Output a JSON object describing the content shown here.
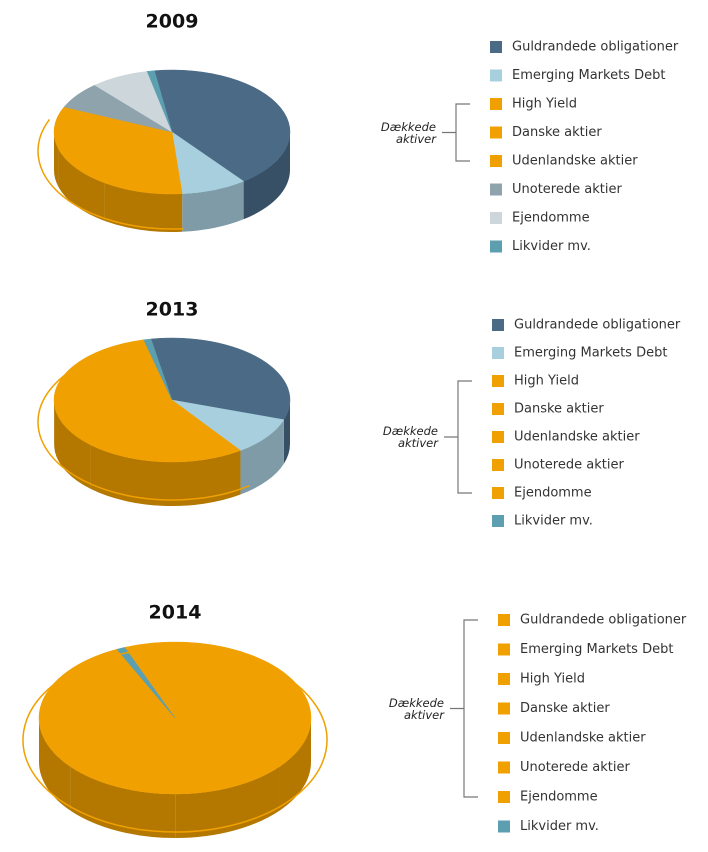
{
  "chart_data": [
    {
      "type": "pie",
      "title": "2009",
      "categories": [
        "Guldrandede obligationer",
        "Emerging Markets Debt",
        "High Yield",
        "Danske aktier",
        "Udenlandske aktier",
        "Unoterede aktier",
        "Ejendomme",
        "Likvider mv."
      ],
      "values": [
        42,
        9,
        11,
        11,
        11,
        7,
        8,
        1
      ],
      "colors": [
        "#4a6a86",
        "#a8cfde",
        "#f0a000",
        "#f0a000",
        "#f0a000",
        "#8fa3ad",
        "#cdd6db",
        "#5c9fb0"
      ],
      "annotation": "Dækkede aktiver",
      "bracket_color": "#f0a000"
    },
    {
      "type": "pie",
      "title": "2013",
      "categories": [
        "Guldrandede obligationer",
        "Emerging Markets Debt",
        "High Yield",
        "Danske aktier",
        "Udenlandske aktier",
        "Unoterede aktier",
        "Ejendomme",
        "Likvider mv."
      ],
      "values": [
        33,
        10,
        11,
        11,
        11,
        11,
        12,
        1
      ],
      "colors": [
        "#4a6a86",
        "#a8cfde",
        "#f0a000",
        "#f0a000",
        "#f0a000",
        "#f0a000",
        "#f0a000",
        "#5c9fb0"
      ],
      "annotation": "Dækkede aktiver",
      "bracket_color": "#f0a000"
    },
    {
      "type": "pie",
      "title": "2014",
      "categories": [
        "Guldrandede obligationer",
        "Emerging Markets Debt",
        "High Yield",
        "Danske aktier",
        "Udenlandske aktier",
        "Unoterede aktier",
        "Ejendomme",
        "Likvider mv."
      ],
      "values": [
        14,
        14,
        14,
        14,
        14,
        14,
        15,
        1
      ],
      "colors": [
        "#f0a000",
        "#f0a000",
        "#f0a000",
        "#f0a000",
        "#f0a000",
        "#f0a000",
        "#f0a000",
        "#5c9fb0"
      ],
      "annotation": "Dækkede aktiver",
      "bracket_color": "#f0a000"
    }
  ]
}
